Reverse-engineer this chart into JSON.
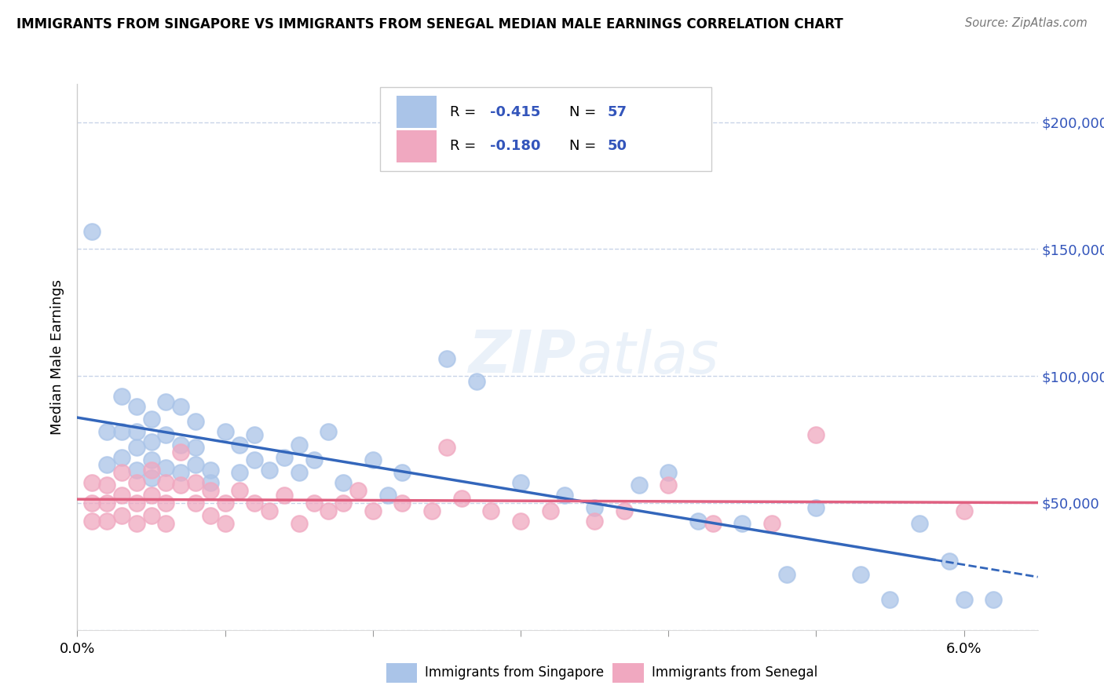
{
  "title": "IMMIGRANTS FROM SINGAPORE VS IMMIGRANTS FROM SENEGAL MEDIAN MALE EARNINGS CORRELATION CHART",
  "source": "Source: ZipAtlas.com",
  "ylabel": "Median Male Earnings",
  "xlim": [
    0.0,
    0.065
  ],
  "ylim": [
    0,
    215000
  ],
  "singapore_color": "#aac4e8",
  "senegal_color": "#f0a8c0",
  "singapore_line_color": "#3366bb",
  "senegal_line_color": "#e06080",
  "background_color": "#ffffff",
  "grid_color": "#c8d4e8",
  "R_singapore": -0.415,
  "N_singapore": 57,
  "R_senegal": -0.18,
  "N_senegal": 50,
  "singapore_scatter_x": [
    0.001,
    0.002,
    0.002,
    0.003,
    0.003,
    0.003,
    0.004,
    0.004,
    0.004,
    0.004,
    0.005,
    0.005,
    0.005,
    0.005,
    0.006,
    0.006,
    0.006,
    0.007,
    0.007,
    0.007,
    0.008,
    0.008,
    0.008,
    0.009,
    0.009,
    0.01,
    0.011,
    0.011,
    0.012,
    0.012,
    0.013,
    0.014,
    0.015,
    0.015,
    0.016,
    0.017,
    0.018,
    0.02,
    0.021,
    0.022,
    0.025,
    0.027,
    0.03,
    0.033,
    0.035,
    0.038,
    0.04,
    0.042,
    0.045,
    0.048,
    0.05,
    0.053,
    0.055,
    0.057,
    0.059,
    0.06,
    0.062
  ],
  "singapore_scatter_y": [
    157000,
    78000,
    65000,
    92000,
    78000,
    68000,
    88000,
    78000,
    72000,
    63000,
    83000,
    74000,
    67000,
    60000,
    90000,
    77000,
    64000,
    88000,
    73000,
    62000,
    82000,
    72000,
    65000,
    63000,
    58000,
    78000,
    73000,
    62000,
    77000,
    67000,
    63000,
    68000,
    73000,
    62000,
    67000,
    78000,
    58000,
    67000,
    53000,
    62000,
    107000,
    98000,
    58000,
    53000,
    48000,
    57000,
    62000,
    43000,
    42000,
    22000,
    48000,
    22000,
    12000,
    42000,
    27000,
    12000,
    12000
  ],
  "senegal_scatter_x": [
    0.001,
    0.001,
    0.001,
    0.002,
    0.002,
    0.002,
    0.003,
    0.003,
    0.003,
    0.004,
    0.004,
    0.004,
    0.005,
    0.005,
    0.005,
    0.006,
    0.006,
    0.006,
    0.007,
    0.007,
    0.008,
    0.008,
    0.009,
    0.009,
    0.01,
    0.01,
    0.011,
    0.012,
    0.013,
    0.014,
    0.015,
    0.016,
    0.017,
    0.018,
    0.019,
    0.02,
    0.022,
    0.024,
    0.025,
    0.026,
    0.028,
    0.03,
    0.032,
    0.035,
    0.037,
    0.04,
    0.043,
    0.047,
    0.05,
    0.06
  ],
  "senegal_scatter_y": [
    58000,
    50000,
    43000,
    57000,
    50000,
    43000,
    62000,
    53000,
    45000,
    58000,
    50000,
    42000,
    63000,
    53000,
    45000,
    58000,
    50000,
    42000,
    70000,
    57000,
    58000,
    50000,
    55000,
    45000,
    50000,
    42000,
    55000,
    50000,
    47000,
    53000,
    42000,
    50000,
    47000,
    50000,
    55000,
    47000,
    50000,
    47000,
    72000,
    52000,
    47000,
    43000,
    47000,
    43000,
    47000,
    57000,
    42000,
    42000,
    77000,
    47000
  ]
}
